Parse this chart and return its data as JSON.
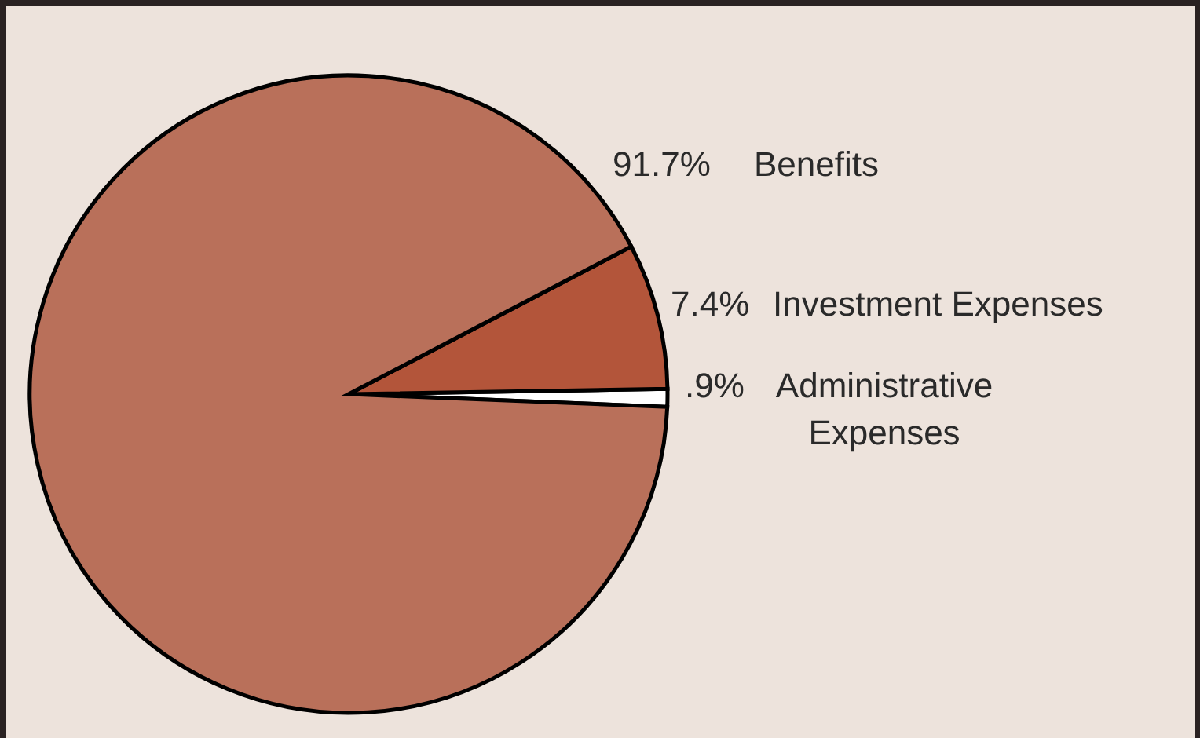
{
  "chart_data": {
    "type": "pie",
    "categories": [
      "Administrative Expenses",
      "Investment Expenses",
      "Benefits"
    ],
    "values": [
      0.9,
      7.4,
      91.7
    ],
    "value_labels": [
      ".9%",
      "7.4%",
      "91.7%"
    ],
    "colors": [
      "#ffffff",
      "#b3553a",
      "#b9705a"
    ]
  }
}
